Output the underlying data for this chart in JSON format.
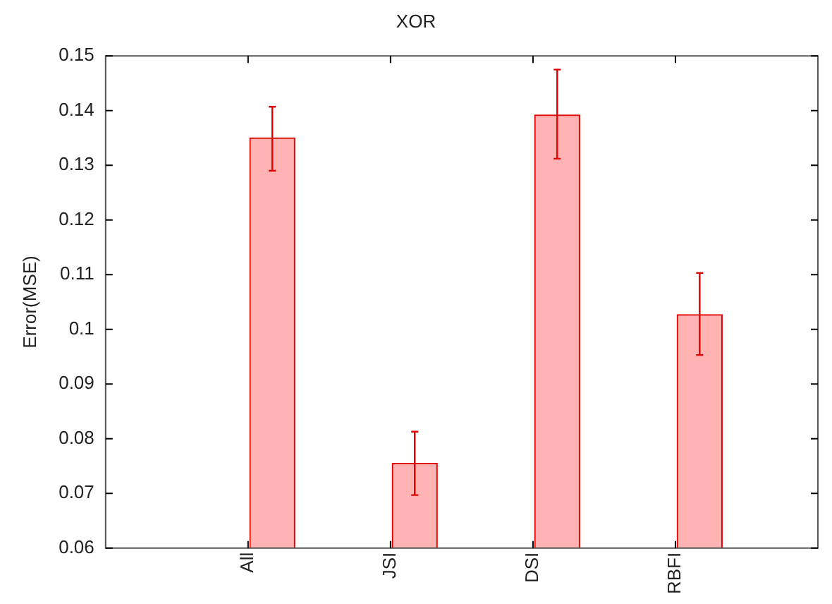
{
  "chart_data": {
    "type": "bar",
    "title": "XOR",
    "ylabel": "Error(MSE)",
    "categories": [
      "All",
      "JSI",
      "DSI",
      "RBFI"
    ],
    "values": [
      0.135,
      0.0755,
      0.1392,
      0.1027
    ],
    "errors": [
      [
        0.129,
        0.1407
      ],
      [
        0.0697,
        0.0813
      ],
      [
        0.1312,
        0.1475
      ],
      [
        0.0953,
        0.1103
      ]
    ],
    "color": "#ffb3b3",
    "ylim": [
      0.06,
      0.15
    ],
    "yticks": [
      0.06,
      0.07,
      0.08,
      0.09,
      0.1,
      0.11,
      0.12,
      0.13,
      0.14,
      0.15
    ],
    "grid": false,
    "legend": false
  }
}
